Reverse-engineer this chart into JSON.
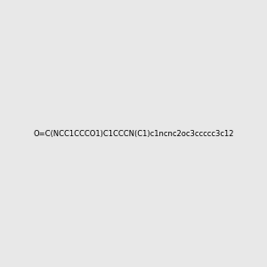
{
  "smiles": "O=C(NCC1CCCO1)C1CCCN(C1)c1ncnc2oc3ccccc3c12",
  "title": "",
  "background_color": "#e8e8e8",
  "figsize": [
    3.0,
    3.0
  ],
  "dpi": 100
}
